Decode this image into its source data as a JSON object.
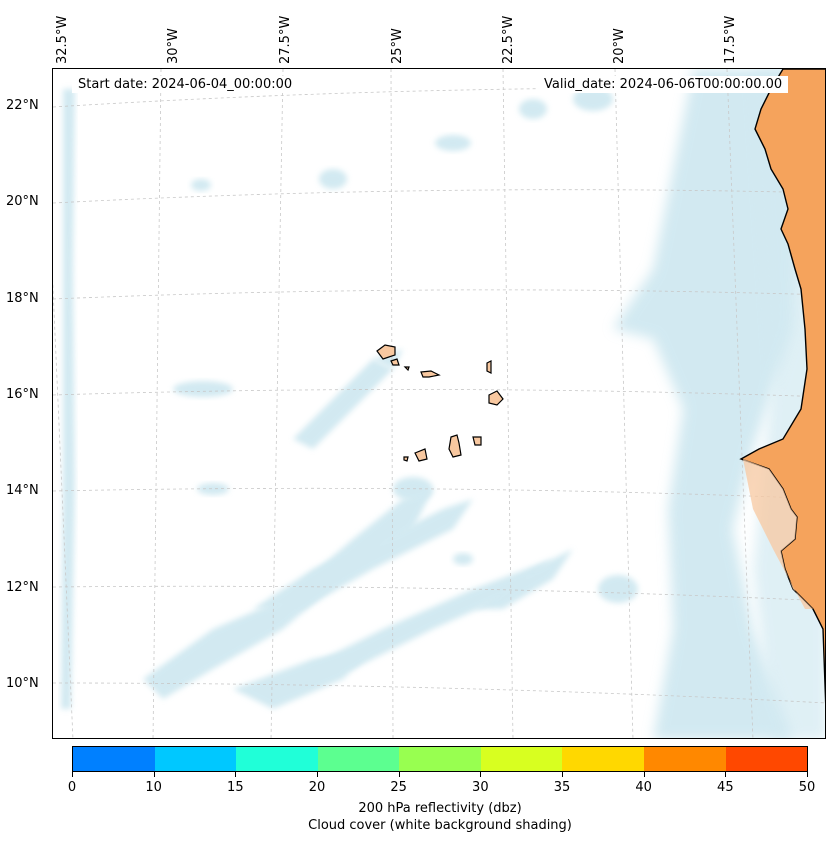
{
  "map": {
    "start_label": "Start date: 2024-06-04_00:00:00",
    "valid_label": "Valid_date: 2024-06-06T00:00:00.00",
    "lon_labels": [
      "32.5°W",
      "30°W",
      "27.5°W",
      "25°W",
      "22.5°W",
      "20°W",
      "17.5°W"
    ],
    "lat_labels": [
      "22°N",
      "20°N",
      "18°N",
      "16°N",
      "14°N",
      "12°N",
      "10°N"
    ],
    "land_color": "#f5a35c",
    "island_color": "#f8c8a0",
    "cloud_color": "#add8e6"
  },
  "colorbar": {
    "ticks": [
      "0",
      "10",
      "15",
      "20",
      "25",
      "30",
      "35",
      "40",
      "45",
      "50"
    ],
    "colors": [
      "#0080ff",
      "#00c8ff",
      "#20ffd8",
      "#5cff90",
      "#98ff50",
      "#d8ff20",
      "#ffd800",
      "#ff8800",
      "#ff4800"
    ],
    "label": "200 hPa reflectivity (dbz)",
    "sublabel": "Cloud cover (white background shading)"
  }
}
